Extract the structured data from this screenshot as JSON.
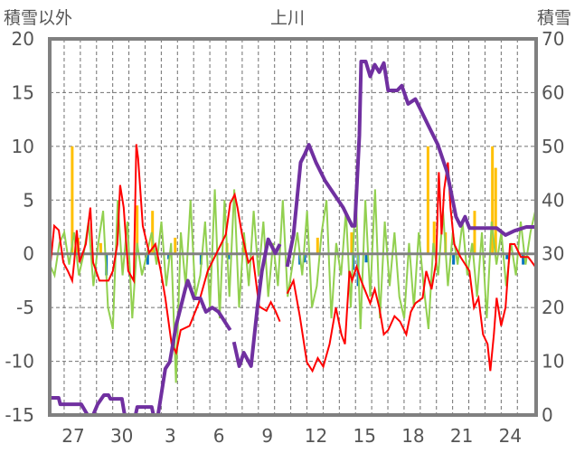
{
  "chart_data": {
    "type": "line",
    "title": "上川",
    "ylabel_left": "積雪以外",
    "ylabel_right": "積雪",
    "ylim_left": [
      -15,
      20
    ],
    "ylim_right": [
      0,
      70
    ],
    "yticks_left": [
      20,
      15,
      10,
      5,
      0,
      -5,
      -10,
      -15
    ],
    "yticks_right": [
      70,
      60,
      50,
      40,
      30,
      20,
      10,
      0
    ],
    "xlim": [
      -1.45,
      28.6
    ],
    "xticks": [
      {
        "t": 0,
        "label": "27"
      },
      {
        "t": 3,
        "label": "30"
      },
      {
        "t": 6,
        "label": "3"
      },
      {
        "t": 9,
        "label": "6"
      },
      {
        "t": 12,
        "label": "9"
      },
      {
        "t": 15,
        "label": "12"
      },
      {
        "t": 18,
        "label": "15"
      },
      {
        "t": 21,
        "label": "18"
      },
      {
        "t": 24,
        "label": "21"
      },
      {
        "t": 27,
        "label": "24"
      }
    ],
    "grid": true,
    "colors": {
      "snow": "#7030a0",
      "temp": "#ff0000",
      "green": "#92d050",
      "precip": "#ffc000",
      "neg": "#0070c0",
      "axis": "#808080"
    },
    "series": [
      {
        "id": "snow",
        "axis": "right",
        "segments": [
          [
            [
              -1.45,
              3.2
            ],
            [
              -0.9,
              3.2
            ],
            [
              -0.8,
              2
            ],
            [
              0.5,
              2
            ],
            [
              0.89,
              0
            ],
            [
              1.23,
              0
            ],
            [
              1.51,
              2
            ],
            [
              1.9,
              3.7
            ],
            [
              2.18,
              3.7
            ],
            [
              2.3,
              3
            ],
            [
              2.73,
              3
            ],
            [
              3.01,
              3
            ],
            [
              3.18,
              0
            ],
            [
              3.85,
              0
            ],
            [
              3.96,
              1.5
            ],
            [
              4.85,
              1.5
            ],
            [
              4.96,
              0
            ],
            [
              5.24,
              0
            ],
            [
              5.41,
              3.2
            ],
            [
              5.69,
              8.6
            ],
            [
              5.97,
              9.9
            ],
            [
              6.36,
              16.7
            ],
            [
              6.64,
              20
            ],
            [
              6.92,
              23.4
            ],
            [
              7.08,
              25
            ],
            [
              7.47,
              21.7
            ],
            [
              7.86,
              21.7
            ],
            [
              8.2,
              19.2
            ],
            [
              8.59,
              20
            ],
            [
              8.98,
              19.2
            ],
            [
              9.7,
              15.8
            ]
          ],
          [
            [
              9.93,
              13.6
            ],
            [
              10.26,
              9.1
            ],
            [
              10.54,
              11.6
            ],
            [
              10.99,
              9.1
            ],
            [
              11.38,
              20
            ],
            [
              11.66,
              26.8
            ],
            [
              12.05,
              32.7
            ],
            [
              12.49,
              30.1
            ],
            [
              12.77,
              31.8
            ]
          ],
          [
            [
              13.22,
              27.6
            ],
            [
              13.61,
              33.5
            ],
            [
              14.05,
              47
            ],
            [
              14.33,
              48.7
            ],
            [
              14.56,
              50.3
            ],
            [
              15,
              47
            ],
            [
              15.56,
              43.6
            ],
            [
              16.12,
              41.1
            ],
            [
              16.68,
              38.6
            ],
            [
              17.23,
              35.2
            ],
            [
              17.4,
              35.2
            ],
            [
              17.68,
              52
            ],
            [
              17.79,
              65.8
            ],
            [
              18.07,
              65.8
            ],
            [
              18.35,
              63
            ],
            [
              18.63,
              65.2
            ],
            [
              18.91,
              63.8
            ],
            [
              19.19,
              65.5
            ],
            [
              19.46,
              60.4
            ],
            [
              20.02,
              60.4
            ],
            [
              20.3,
              61.3
            ],
            [
              20.69,
              57.9
            ],
            [
              21.14,
              58.8
            ],
            [
              21.42,
              57.1
            ],
            [
              21.97,
              53.7
            ],
            [
              22.53,
              50.3
            ],
            [
              23.09,
              45.3
            ],
            [
              23.65,
              36.9
            ],
            [
              23.93,
              35.2
            ],
            [
              24.21,
              36.9
            ],
            [
              24.48,
              34.8
            ],
            [
              25.04,
              34.8
            ],
            [
              26.16,
              34.8
            ],
            [
              26.71,
              33.5
            ],
            [
              27.27,
              34.3
            ],
            [
              28,
              35
            ],
            [
              28.55,
              35
            ]
          ]
        ]
      },
      {
        "id": "temp",
        "axis": "left",
        "segments": [
          [
            [
              -1.45,
              -1.6
            ],
            [
              -1.17,
              2.6
            ],
            [
              -0.89,
              2.2
            ],
            [
              -0.61,
              -0.8
            ],
            [
              -0.33,
              -1.6
            ],
            [
              -0.06,
              -2.5
            ],
            [
              0.06,
              -0.8
            ],
            [
              0.22,
              2.2
            ],
            [
              0.39,
              -0.8
            ],
            [
              0.78,
              0.9
            ],
            [
              1.06,
              4.3
            ],
            [
              1.23,
              -0.8
            ],
            [
              1.62,
              -2.5
            ],
            [
              2.18,
              -2.5
            ],
            [
              2.45,
              -1.6
            ],
            [
              2.73,
              0.9
            ],
            [
              2.9,
              6.4
            ],
            [
              3.12,
              4.3
            ],
            [
              3.4,
              -1.6
            ],
            [
              3.74,
              -2.5
            ],
            [
              3.9,
              10.2
            ],
            [
              4.01,
              8.9
            ],
            [
              4.3,
              2.6
            ],
            [
              4.69,
              0.1
            ],
            [
              5.08,
              0.9
            ],
            [
              5.41,
              -1.6
            ],
            [
              5.69,
              -4.1
            ],
            [
              6.08,
              -8.4
            ],
            [
              6.36,
              -9.2
            ],
            [
              6.64,
              -7.1
            ],
            [
              7.19,
              -6.7
            ],
            [
              7.75,
              -4.6
            ],
            [
              8.31,
              -1.6
            ],
            [
              8.87,
              0.1
            ],
            [
              9.43,
              1.8
            ],
            [
              9.7,
              4.7
            ],
            [
              9.98,
              5.5
            ],
            [
              10.15,
              4.3
            ],
            [
              10.43,
              1.8
            ],
            [
              10.82,
              -0.8
            ],
            [
              11.1,
              -0.3
            ],
            [
              11.49,
              -4.9
            ],
            [
              11.94,
              -5.3
            ],
            [
              12.21,
              -4.5
            ],
            [
              12.49,
              -5.3
            ],
            [
              12.77,
              -6.3
            ]
          ],
          [
            [
              13.22,
              -3.7
            ],
            [
              13.61,
              -2.5
            ],
            [
              14,
              -5.8
            ],
            [
              14.44,
              -10.1
            ],
            [
              14.78,
              -10.9
            ],
            [
              15.11,
              -9.7
            ],
            [
              15.45,
              -10.5
            ],
            [
              15.84,
              -8.4
            ],
            [
              16.23,
              -5
            ],
            [
              16.57,
              -7.5
            ],
            [
              16.79,
              -8.4
            ],
            [
              17.07,
              -1.6
            ],
            [
              17.23,
              -2.5
            ],
            [
              17.51,
              -1.2
            ],
            [
              17.79,
              -2.5
            ],
            [
              18.35,
              -4.6
            ],
            [
              18.63,
              -3.3
            ],
            [
              18.91,
              -5
            ],
            [
              19.19,
              -7.5
            ],
            [
              19.46,
              -7.1
            ],
            [
              19.85,
              -5.8
            ],
            [
              20.19,
              -6.3
            ],
            [
              20.58,
              -7.5
            ],
            [
              20.86,
              -5.4
            ],
            [
              21.14,
              -4.6
            ],
            [
              21.59,
              -4.1
            ],
            [
              21.81,
              -1.6
            ],
            [
              22.14,
              -3.3
            ],
            [
              22.42,
              -0.8
            ],
            [
              22.59,
              7.6
            ],
            [
              22.76,
              1.8
            ],
            [
              22.92,
              6
            ],
            [
              23.15,
              8.5
            ],
            [
              23.31,
              4.3
            ],
            [
              23.54,
              0.9
            ],
            [
              23.93,
              -0.3
            ],
            [
              24.48,
              -1.6
            ],
            [
              24.76,
              -5
            ],
            [
              25.04,
              -4.1
            ],
            [
              25.32,
              -7.5
            ],
            [
              25.6,
              -8.4
            ],
            [
              25.77,
              -10.9
            ],
            [
              25.99,
              -7.5
            ],
            [
              26.16,
              -4.1
            ],
            [
              26.44,
              -6.7
            ],
            [
              26.71,
              -5
            ],
            [
              26.99,
              0.9
            ],
            [
              27.27,
              0.9
            ],
            [
              27.66,
              -0.3
            ],
            [
              28.11,
              -0.3
            ],
            [
              28.55,
              -1.2
            ]
          ]
        ]
      },
      {
        "id": "green",
        "axis": "left",
        "t0": -1.45,
        "dt": 0.3,
        "values": [
          -1,
          -2,
          1,
          2,
          -1,
          2,
          -2,
          0,
          3,
          -3,
          1,
          4,
          -5,
          -7,
          5,
          -2,
          3,
          -6,
          1,
          -2,
          0,
          2,
          -1,
          3,
          -3,
          1,
          -12,
          2,
          -3,
          5,
          -4,
          -2,
          3,
          -5,
          6,
          -6,
          5,
          -4,
          6,
          -5,
          2,
          -3,
          4,
          -2,
          3,
          -4,
          1,
          -3,
          5,
          -4,
          -1,
          2,
          -2,
          4,
          -5,
          -3,
          2,
          5,
          -6,
          1,
          -2,
          4,
          -5,
          6,
          -7,
          5,
          -4,
          6,
          -6,
          3,
          -3,
          2,
          -4,
          -6,
          1,
          -5,
          2,
          -3,
          -7,
          1,
          -2,
          4,
          -3,
          2,
          -1,
          3,
          -2,
          1,
          -4,
          2,
          -6,
          3,
          -1,
          2,
          -3,
          1,
          -2,
          3,
          -1,
          2,
          4
        ]
      },
      {
        "id": "precip",
        "axis": "left",
        "type": "bar",
        "points": [
          [
            -0.06,
            10
          ],
          [
            0.3,
            1.5
          ],
          [
            1.7,
            1
          ],
          [
            3.95,
            4.5
          ],
          [
            4.9,
            4
          ],
          [
            6.3,
            1.5
          ],
          [
            9.5,
            1
          ],
          [
            10.6,
            1
          ],
          [
            15.1,
            1.5
          ],
          [
            17.2,
            2
          ],
          [
            21.92,
            10
          ],
          [
            22.3,
            3
          ],
          [
            23.0,
            2
          ],
          [
            24.8,
            4
          ],
          [
            25.9,
            10
          ],
          [
            26.1,
            8
          ]
        ]
      },
      {
        "id": "neg",
        "axis": "left",
        "type": "bar",
        "points": [
          [
            2.05,
            -2
          ],
          [
            4.6,
            -1
          ],
          [
            5.9,
            -0.5
          ],
          [
            7.9,
            -1
          ],
          [
            9.6,
            -0.5
          ],
          [
            14.0,
            -1
          ],
          [
            14.3,
            -0.8
          ],
          [
            17.3,
            -1.5
          ],
          [
            17.6,
            -3
          ],
          [
            18.1,
            -0.8
          ],
          [
            23.5,
            -1
          ],
          [
            26.8,
            -0.5
          ],
          [
            27.8,
            -1
          ]
        ]
      }
    ]
  }
}
